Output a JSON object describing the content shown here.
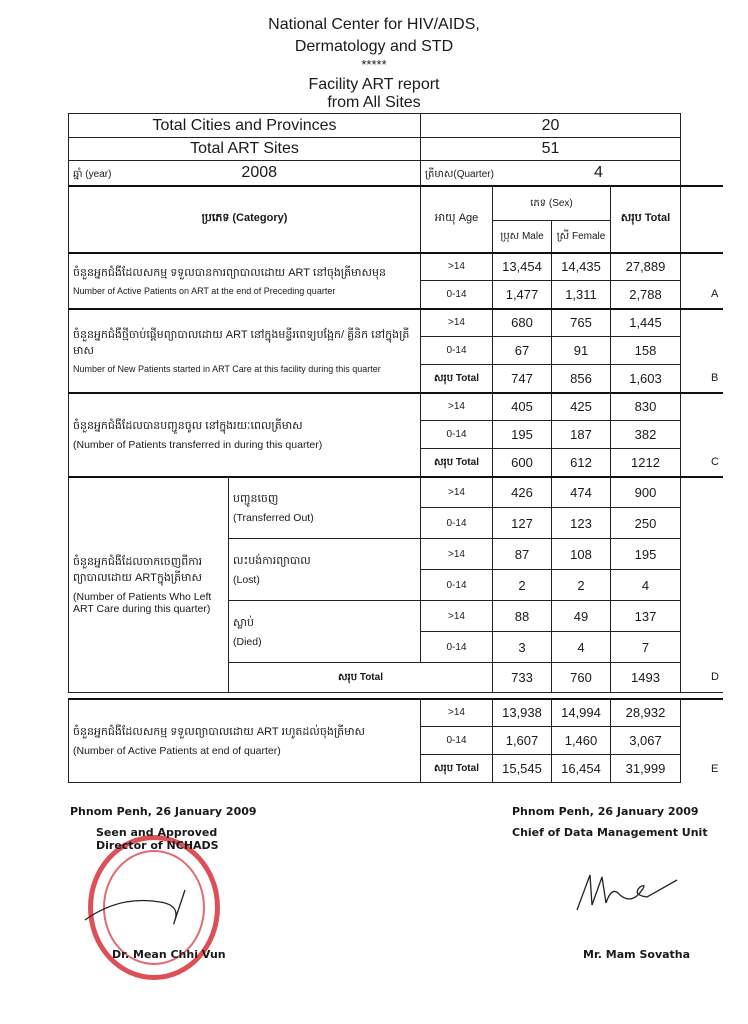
{
  "header": {
    "line1": "National Center for HIV/AIDS,",
    "line2": "Dermatology and STD",
    "stars": "*****",
    "line3": "Facility ART report",
    "line4": "from All Sites"
  },
  "summary": {
    "cities_label": "Total Cities and Provinces",
    "cities_value": "20",
    "sites_label": "Total ART Sites",
    "sites_value": "51",
    "year_label": "ឆ្នាំ (year)",
    "year_value": "2008",
    "quarter_label": "ត្រីមាស(Quarter)",
    "quarter_value": "4"
  },
  "columns": {
    "category": "ប្រភេទ (Category)",
    "age": "អាយុ Age",
    "sex": "ភេទ (Sex)",
    "male": "ប្រុស Male",
    "female": "ស្រី Female",
    "total": "សរុប Total"
  },
  "sections": {
    "A": {
      "kh": "ចំនួនអ្នកជំងឺដែលសកម្ម ទទួលបានការព្យាបាលដោយ ART នៅចុងត្រីមាសមុន",
      "en": "Number of Active Patients on ART at the end of Preceding quarter",
      "letter": "A",
      "rows": [
        {
          "age": ">14",
          "male": "13,454",
          "female": "14,435",
          "total": "27,889"
        },
        {
          "age": "0-14",
          "male": "1,477",
          "female": "1,311",
          "total": "2,788"
        }
      ]
    },
    "B": {
      "kh": "ចំនួនអ្នកជំងឺថ្មីចាប់ផ្តើមព្យាបាលដោយ ART នៅក្នុងមន្ទីរពេទ្យបង្អែក/ គ្លីនិក នៅក្នុងត្រីមាស",
      "en": "Number of New Patients started in ART Care at this facility during this quarter",
      "letter": "B",
      "rows": [
        {
          "age": ">14",
          "male": "680",
          "female": "765",
          "total": "1,445"
        },
        {
          "age": "0-14",
          "male": "67",
          "female": "91",
          "total": "158"
        },
        {
          "age": "សរុប Total",
          "male": "747",
          "female": "856",
          "total": "1,603"
        }
      ]
    },
    "C": {
      "kh": "ចំនួនអ្នកជំងឺដែលបានបញ្ជូនចូល នៅក្នុងរយៈពេលត្រីមាស",
      "en": "(Number of Patients transferred in during this quarter)",
      "letter": "C",
      "rows": [
        {
          "age": ">14",
          "male": "405",
          "female": "425",
          "total": "830"
        },
        {
          "age": "0-14",
          "male": "195",
          "female": "187",
          "total": "382"
        },
        {
          "age": "សរុប Total",
          "male": "600",
          "female": "612",
          "total": "1212"
        }
      ]
    },
    "D": {
      "kh": "ចំនួនអ្នកជំងឺដែលចាកចេញពីការព្យាបាលដោយ ARTក្នុងត្រីមាស",
      "en": "(Number of Patients Who Left ART Care during this quarter)",
      "letter": "D",
      "subgroups": [
        {
          "kh": "បញ្ជូនចេញ",
          "en": "(Transferred Out)",
          "rows": [
            {
              "age": ">14",
              "male": "426",
              "female": "474",
              "total": "900"
            },
            {
              "age": "0-14",
              "male": "127",
              "female": "123",
              "total": "250"
            }
          ]
        },
        {
          "kh": "លះបង់ការព្យាបាល",
          "en": "(Lost)",
          "rows": [
            {
              "age": ">14",
              "male": "87",
              "female": "108",
              "total": "195"
            },
            {
              "age": "0-14",
              "male": "2",
              "female": "2",
              "total": "4"
            }
          ]
        },
        {
          "kh": "ស្លាប់",
          "en": "(Died)",
          "rows": [
            {
              "age": ">14",
              "male": "88",
              "female": "49",
              "total": "137"
            },
            {
              "age": "0-14",
              "male": "3",
              "female": "4",
              "total": "7"
            }
          ]
        }
      ],
      "total": {
        "label": "សរុប Total",
        "male": "733",
        "female": "760",
        "total": "1493"
      }
    },
    "E": {
      "kh": "ចំនួនអ្នកជំងឺដែលសកម្ម ទទួលព្យាបាលដោយ ART រហូតដល់ចុងត្រីមាស",
      "en": "(Number of Active Patients at end of quarter)",
      "letter": "E",
      "rows": [
        {
          "age": ">14",
          "male": "13,938",
          "female": "14,994",
          "total": "28,932"
        },
        {
          "age": "0-14",
          "male": "1,607",
          "female": "1,460",
          "total": "3,067"
        },
        {
          "age": "សរុប Total",
          "male": "15,545",
          "female": "16,454",
          "total": "31,999"
        }
      ]
    }
  },
  "footer": {
    "left": {
      "date": "Phnom Penh, 26 January 2009",
      "line1": "Seen and Approved",
      "line2": "Director of NCHADS",
      "name": "Dr. Mean Chhi Vun",
      "stamp_color": "#d8323a"
    },
    "right": {
      "date": "Phnom Penh, 26 January 2009",
      "title": "Chief of Data Management Unit",
      "name": "Mr. Mam Sovatha"
    }
  }
}
